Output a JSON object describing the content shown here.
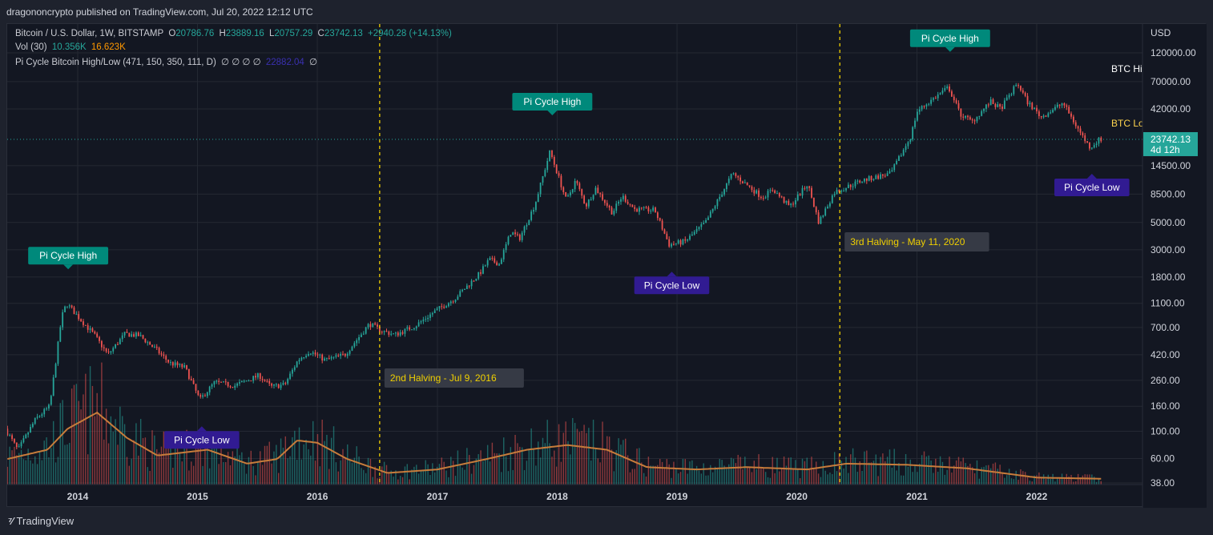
{
  "header": {
    "published": "dragononcrypto published on TradingView.com, Jul 20, 2022 12:12 UTC"
  },
  "legend": {
    "symbol": "Bitcoin / U.S. Dollar, 1W, BITSTAMP",
    "open_label": "O",
    "open": "20786.76",
    "high_label": "H",
    "high": "23889.16",
    "low_label": "L",
    "low": "20757.29",
    "close_label": "C",
    "close": "23742.13",
    "change": "+2940.28 (+14.13%)",
    "vol_label": "Vol (30)",
    "vol_value": "10.356K",
    "vol_ma": "16.623K",
    "indicator": "Pi Cycle Bitcoin High/Low (471, 150, 350, 111, D)",
    "indicator_symbols": "∅ ∅ ∅ ∅",
    "indicator_value": "22882.04",
    "indicator_tail": "∅"
  },
  "footer": {
    "brand": "TradingView",
    "logo_icon": "tradingview-logo-icon"
  },
  "colors": {
    "up": "#26a69a",
    "down": "#ef5350",
    "vol_ma": "#c77c3b",
    "high_label": "#00897b",
    "low_label": "#311b92",
    "halving": "#f0d000"
  },
  "chart_data": {
    "type": "candlestick",
    "title": "Bitcoin / U.S. Dollar, 1W, BITSTAMP",
    "y_scale": "log",
    "y_currency": "USD",
    "y_ticks": [
      38,
      60,
      100,
      160,
      260,
      420,
      700,
      1100,
      1800,
      3000,
      5000,
      8500,
      14500,
      42000,
      70000,
      120000
    ],
    "y_tick_labels": [
      "38.00",
      "60.00",
      "100.00",
      "160.00",
      "260.00",
      "420.00",
      "700.00",
      "1100.00",
      "1800.00",
      "3000.00",
      "5000.00",
      "8500.00",
      "14500.00",
      "42000.00",
      "70000.00",
      "120000.00"
    ],
    "x_ticks": [
      "2014",
      "2015",
      "2016",
      "2017",
      "2018",
      "2019",
      "2020",
      "2021",
      "2022"
    ],
    "last_price": {
      "value": 23742.13,
      "label": "23742.13",
      "countdown": "4d 12h"
    },
    "price_path": [
      [
        "2013-06-01",
        105
      ],
      [
        "2013-07-10",
        70
      ],
      [
        "2013-09-01",
        125
      ],
      [
        "2013-10-15",
        160
      ],
      [
        "2013-11-20",
        850
      ],
      [
        "2013-12-05",
        1100
      ],
      [
        "2014-01-10",
        850
      ],
      [
        "2014-03-01",
        600
      ],
      [
        "2014-04-10",
        420
      ],
      [
        "2014-06-01",
        620
      ],
      [
        "2014-07-15",
        600
      ],
      [
        "2014-09-01",
        470
      ],
      [
        "2014-10-15",
        360
      ],
      [
        "2014-12-01",
        330
      ],
      [
        "2015-01-15",
        180
      ],
      [
        "2015-03-01",
        250
      ],
      [
        "2015-05-01",
        235
      ],
      [
        "2015-07-15",
        285
      ],
      [
        "2015-08-20",
        230
      ],
      [
        "2015-10-01",
        240
      ],
      [
        "2015-11-10",
        380
      ],
      [
        "2015-12-15",
        450
      ],
      [
        "2016-02-01",
        380
      ],
      [
        "2016-04-01",
        420
      ],
      [
        "2016-06-15",
        750
      ],
      [
        "2016-07-20",
        660
      ],
      [
        "2016-09-01",
        610
      ],
      [
        "2016-11-01",
        720
      ],
      [
        "2017-01-01",
        950
      ],
      [
        "2017-03-01",
        1200
      ],
      [
        "2017-05-15",
        1900
      ],
      [
        "2017-06-15",
        2500
      ],
      [
        "2017-07-15",
        2300
      ],
      [
        "2017-08-20",
        4200
      ],
      [
        "2017-09-15",
        3700
      ],
      [
        "2017-11-01",
        7000
      ],
      [
        "2017-12-17",
        19000
      ],
      [
        "2018-02-05",
        7500
      ],
      [
        "2018-03-05",
        11000
      ],
      [
        "2018-04-05",
        6800
      ],
      [
        "2018-05-05",
        9500
      ],
      [
        "2018-06-25",
        6000
      ],
      [
        "2018-07-25",
        8200
      ],
      [
        "2018-09-01",
        6400
      ],
      [
        "2018-11-01",
        6300
      ],
      [
        "2018-12-15",
        3300
      ],
      [
        "2019-02-01",
        3500
      ],
      [
        "2019-04-05",
        5000
      ],
      [
        "2019-06-26",
        12500
      ],
      [
        "2019-08-01",
        10500
      ],
      [
        "2019-09-25",
        8000
      ],
      [
        "2019-10-27",
        9300
      ],
      [
        "2019-12-17",
        6700
      ],
      [
        "2020-02-10",
        10300
      ],
      [
        "2020-03-15",
        5000
      ],
      [
        "2020-05-01",
        8800
      ],
      [
        "2020-07-25",
        11000
      ],
      [
        "2020-10-20",
        12500
      ],
      [
        "2020-12-20",
        25000
      ],
      [
        "2021-01-08",
        40000
      ],
      [
        "2021-02-10",
        47000
      ],
      [
        "2021-04-14",
        63000
      ],
      [
        "2021-05-20",
        38000
      ],
      [
        "2021-06-25",
        33000
      ],
      [
        "2021-08-20",
        48000
      ],
      [
        "2021-09-20",
        42000
      ],
      [
        "2021-11-10",
        68000
      ],
      [
        "2021-12-10",
        48000
      ],
      [
        "2022-01-22",
        36000
      ],
      [
        "2022-03-29",
        47000
      ],
      [
        "2022-05-10",
        30000
      ],
      [
        "2022-06-15",
        21000
      ],
      [
        "2022-06-20",
        20500
      ],
      [
        "2022-07-18",
        23742
      ]
    ],
    "volume_ma_path": [
      [
        "2013-06-01",
        0.22
      ],
      [
        "2013-10-01",
        0.3
      ],
      [
        "2013-12-01",
        0.48
      ],
      [
        "2014-03-01",
        0.62
      ],
      [
        "2014-06-01",
        0.4
      ],
      [
        "2014-09-01",
        0.25
      ],
      [
        "2015-02-01",
        0.3
      ],
      [
        "2015-06-01",
        0.18
      ],
      [
        "2015-09-01",
        0.22
      ],
      [
        "2015-11-01",
        0.38
      ],
      [
        "2016-01-01",
        0.36
      ],
      [
        "2016-04-01",
        0.22
      ],
      [
        "2016-08-01",
        0.1
      ],
      [
        "2017-01-01",
        0.13
      ],
      [
        "2017-06-01",
        0.22
      ],
      [
        "2017-10-01",
        0.3
      ],
      [
        "2018-02-01",
        0.34
      ],
      [
        "2018-06-01",
        0.3
      ],
      [
        "2018-10-01",
        0.15
      ],
      [
        "2019-03-01",
        0.13
      ],
      [
        "2019-08-01",
        0.15
      ],
      [
        "2020-02-01",
        0.13
      ],
      [
        "2020-06-01",
        0.18
      ],
      [
        "2020-12-01",
        0.17
      ],
      [
        "2021-06-01",
        0.14
      ],
      [
        "2022-01-01",
        0.06
      ],
      [
        "2022-07-18",
        0.05
      ]
    ],
    "annotations": [
      {
        "text": "Pi Cycle High",
        "kind": "high",
        "date": "2013-12-03"
      },
      {
        "text": "Pi Cycle High",
        "kind": "high",
        "date": "2017-12-17"
      },
      {
        "text": "Pi Cycle High",
        "kind": "high",
        "date": "2021-04-12"
      },
      {
        "text": "Pi Cycle Low",
        "kind": "low",
        "date": "2015-01-14"
      },
      {
        "text": "Pi Cycle Low",
        "kind": "low",
        "date": "2018-12-16"
      },
      {
        "text": "Pi Cycle Low",
        "kind": "low",
        "date": "2022-06-18"
      }
    ],
    "halvings": [
      {
        "text": "2nd Halving - Jul 9, 2016",
        "date": "2016-07-09"
      },
      {
        "text": "3rd Halving - May 11, 2020",
        "date": "2020-05-11"
      }
    ],
    "line_labels": [
      "BTC High",
      "BTC Low"
    ]
  }
}
